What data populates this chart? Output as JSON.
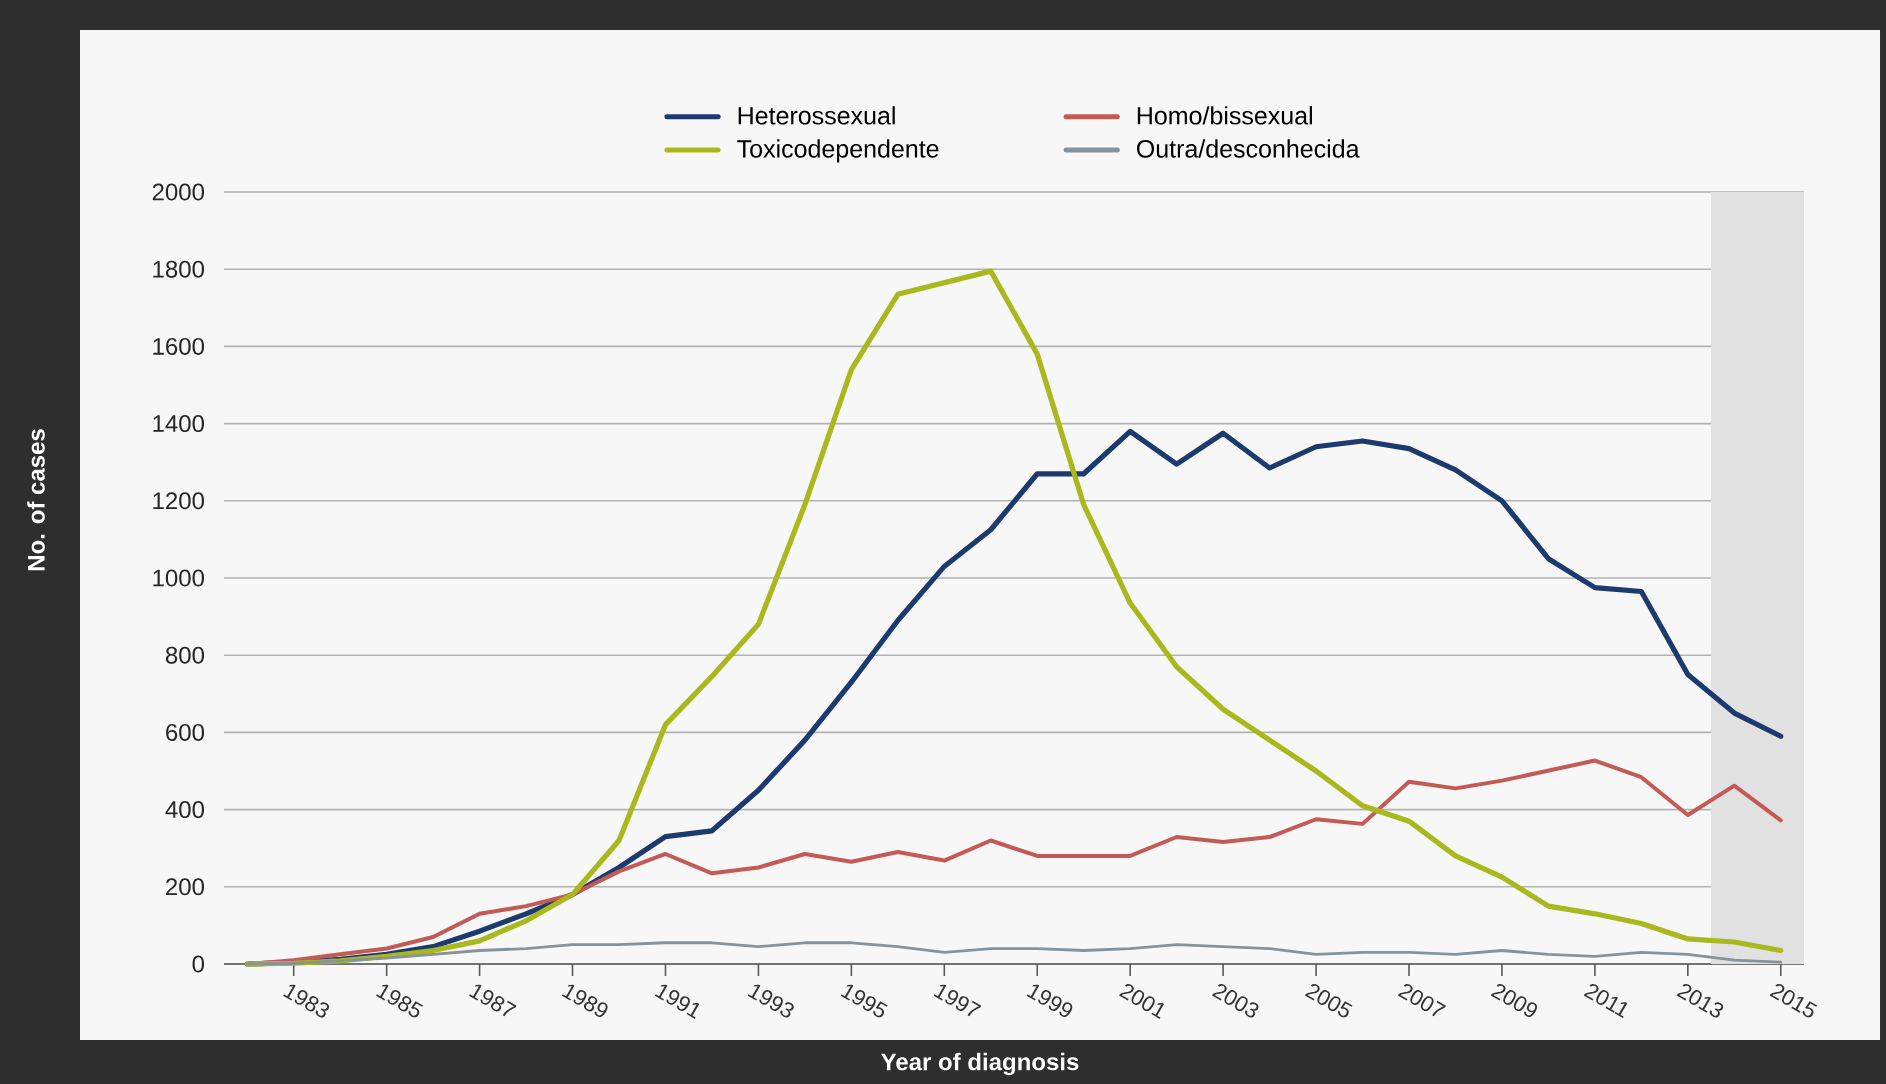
{
  "chart_data": {
    "type": "line",
    "xlabel": "Year of diagnosis",
    "ylabel": "No. of cases",
    "x": [
      1982,
      1983,
      1984,
      1985,
      1986,
      1987,
      1988,
      1989,
      1990,
      1991,
      1992,
      1993,
      1994,
      1995,
      1996,
      1997,
      1998,
      1999,
      2000,
      2001,
      2002,
      2003,
      2004,
      2005,
      2006,
      2007,
      2008,
      2009,
      2010,
      2011,
      2012,
      2013,
      2014,
      2015
    ],
    "series": [
      {
        "name": "Heterossexual",
        "color": "#1c3a6e",
        "values": [
          0,
          4,
          12,
          25,
          45,
          85,
          130,
          180,
          250,
          330,
          345,
          450,
          580,
          730,
          890,
          1030,
          1125,
          1270,
          1270,
          1380,
          1295,
          1375,
          1285,
          1340,
          1355,
          1335,
          1280,
          1200,
          1050,
          975,
          965,
          750,
          650,
          590
        ]
      },
      {
        "name": "Homo/bissexual",
        "color": "#c35a55",
        "values": [
          0,
          10,
          25,
          40,
          70,
          130,
          150,
          180,
          240,
          285,
          235,
          250,
          285,
          265,
          290,
          268,
          320,
          280,
          280,
          280,
          329,
          316,
          329,
          375,
          363,
          472,
          455,
          475,
          501,
          527,
          484,
          386,
          462,
          372
        ]
      },
      {
        "name": "Toxicodependente",
        "color": "#a9b81c",
        "values": [
          0,
          2,
          8,
          20,
          35,
          60,
          112,
          180,
          320,
          620,
          745,
          880,
          1190,
          1540,
          1735,
          1765,
          1795,
          1580,
          1190,
          935,
          770,
          660,
          580,
          500,
          410,
          370,
          280,
          225,
          150,
          130,
          105,
          65,
          57,
          35
        ]
      },
      {
        "name": "Outra/desconhecida",
        "color": "#87929a",
        "values": [
          0,
          2,
          8,
          15,
          25,
          35,
          40,
          50,
          50,
          55,
          55,
          45,
          55,
          55,
          45,
          30,
          40,
          40,
          35,
          40,
          50,
          45,
          40,
          25,
          30,
          30,
          25,
          35,
          25,
          20,
          30,
          25,
          10,
          5
        ]
      }
    ],
    "xlim": [
      1981.5,
      2015.5
    ],
    "ylim": [
      0,
      2000
    ],
    "xticks": [
      1983,
      1985,
      1987,
      1989,
      1991,
      1993,
      1995,
      1997,
      1999,
      2001,
      2003,
      2005,
      2007,
      2009,
      2011,
      2013,
      2015
    ],
    "yticks": [
      0,
      200,
      400,
      600,
      800,
      1000,
      1200,
      1400,
      1600,
      1800,
      2000
    ],
    "bands": [
      {
        "axis": "x",
        "from": 2013.5,
        "to": 2015.5,
        "color": "#e1e1e1"
      }
    ],
    "grid": "y",
    "legend": "top",
    "marker": "none",
    "line_style": "solid"
  }
}
